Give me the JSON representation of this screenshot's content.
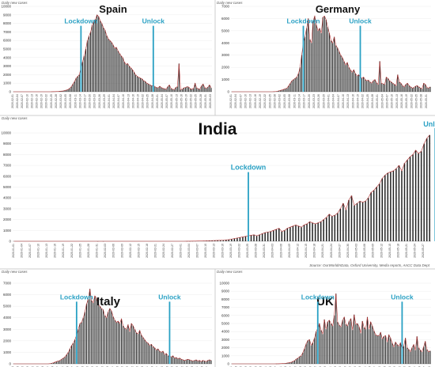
{
  "source_note": "Source: OurWorldInData, Oxford University, Media reports, AnCC Data Dept",
  "chart_data": [
    {
      "type": "bar",
      "title": "Spain",
      "ylabel": "Daily new cases",
      "ylim": [
        0,
        10000
      ],
      "y_ticks": [
        0,
        1000,
        2000,
        3000,
        4000,
        5000,
        6000,
        7000,
        8000,
        9000,
        10000
      ],
      "x_start": "2020-02-01",
      "x_end": "2020-05-31",
      "values": [
        0,
        0,
        0,
        0,
        0,
        0,
        0,
        0,
        0,
        0,
        0,
        0,
        0,
        0,
        0,
        0,
        0,
        0,
        0,
        0,
        0,
        0,
        0,
        0,
        10,
        15,
        20,
        30,
        40,
        60,
        80,
        100,
        150,
        200,
        280,
        400,
        600,
        900,
        1200,
        1600,
        1800,
        2000,
        2800,
        3500,
        4200,
        5000,
        6000,
        6500,
        7000,
        7800,
        8200,
        8500,
        9000,
        8800,
        8300,
        8000,
        7500,
        7200,
        6600,
        6200,
        6000,
        5800,
        5500,
        5100,
        5200,
        4800,
        4500,
        4200,
        4000,
        3500,
        3200,
        3300,
        3000,
        2800,
        2600,
        2300,
        2000,
        1800,
        1700,
        1600,
        1500,
        1300,
        1200,
        1000,
        900,
        800,
        700,
        750,
        600,
        500,
        450,
        650,
        500,
        400,
        350,
        300,
        600,
        800,
        400,
        300,
        250,
        500,
        600,
        3300,
        250,
        300,
        450,
        500,
        600,
        550,
        350,
        300,
        400,
        1000,
        450,
        350,
        300,
        700,
        900,
        500,
        400,
        550,
        800,
        450
      ],
      "annotations": [
        {
          "label": "Lockdown",
          "date": "2020-03-14"
        },
        {
          "label": "Unlock",
          "date": "2020-04-28"
        }
      ]
    },
    {
      "type": "bar",
      "title": "Germany",
      "ylabel": "Daily new cases",
      "ylim": [
        0,
        7000
      ],
      "y_ticks": [
        0,
        1000,
        2000,
        3000,
        4000,
        5000,
        6000,
        7000
      ],
      "x_start": "2020-02-01",
      "x_end": "2020-05-31",
      "values": [
        0,
        0,
        0,
        0,
        0,
        0,
        0,
        0,
        0,
        0,
        0,
        0,
        0,
        0,
        0,
        0,
        0,
        0,
        0,
        0,
        0,
        0,
        0,
        0,
        0,
        0,
        10,
        20,
        40,
        80,
        120,
        150,
        200,
        250,
        300,
        500,
        700,
        900,
        1000,
        1100,
        1200,
        1500,
        2000,
        3000,
        4000,
        4500,
        5200,
        6000,
        4300,
        4000,
        5800,
        6200,
        5500,
        5000,
        5200,
        4800,
        6100,
        6200,
        5900,
        5300,
        4800,
        4200,
        4000,
        4500,
        3800,
        3600,
        3300,
        3000,
        2800,
        2500,
        2200,
        2400,
        2000,
        1800,
        1600,
        1800,
        1500,
        1300,
        1400,
        1200,
        1100,
        1200,
        1000,
        900,
        950,
        800,
        700,
        900,
        1000,
        750,
        600,
        2500,
        700,
        650,
        600,
        1200,
        1100,
        900,
        800,
        700,
        600,
        500,
        1400,
        800,
        700,
        500,
        400,
        600,
        700,
        500,
        400,
        300,
        350,
        450,
        500,
        400,
        300,
        250,
        700,
        600,
        350,
        300,
        400
      ],
      "annotations": [
        {
          "label": "Lockdown",
          "date": "2020-03-16"
        },
        {
          "label": "Unlock",
          "date": "2020-04-20"
        }
      ]
    },
    {
      "type": "bar",
      "title": "India",
      "ylabel": "Daily new cases",
      "ylim": [
        0,
        10000
      ],
      "y_ticks": [
        0,
        1000,
        2000,
        3000,
        4000,
        5000,
        6000,
        7000,
        8000,
        9000,
        10000
      ],
      "x_start": "2020-01-01",
      "x_end": "2020-06-07",
      "values": [
        0,
        0,
        0,
        0,
        0,
        0,
        0,
        0,
        0,
        0,
        0,
        0,
        0,
        0,
        0,
        0,
        0,
        0,
        0,
        0,
        0,
        0,
        0,
        0,
        0,
        0,
        0,
        0,
        0,
        0,
        1,
        0,
        1,
        0,
        0,
        0,
        0,
        0,
        0,
        0,
        0,
        0,
        0,
        0,
        0,
        0,
        0,
        0,
        0,
        0,
        0,
        0,
        0,
        0,
        0,
        0,
        0,
        0,
        0,
        0,
        0,
        0,
        5,
        5,
        10,
        15,
        20,
        25,
        30,
        40,
        50,
        60,
        70,
        80,
        90,
        100,
        120,
        150,
        200,
        250,
        300,
        350,
        400,
        450,
        500,
        550,
        600,
        500,
        600,
        700,
        800,
        850,
        900,
        1000,
        1100,
        1200,
        900,
        1000,
        1200,
        1300,
        1400,
        1500,
        1400,
        1300,
        1500,
        1600,
        1800,
        1700,
        1600,
        1700,
        1800,
        2000,
        2200,
        2500,
        2300,
        2400,
        2600,
        3000,
        3500,
        2900,
        3800,
        4200,
        3300,
        3500,
        3700,
        3600,
        3700,
        4000,
        4500,
        4700,
        5000,
        5300,
        5800,
        6100,
        6300,
        6400,
        6500,
        6700,
        7000,
        6500,
        7200,
        7500,
        7800,
        8000,
        8400,
        8100,
        8300,
        9000,
        9500,
        9800
      ],
      "annotations": [
        {
          "label": "Lockdown",
          "date": "2020-03-25"
        },
        {
          "label": "Unlock",
          "date": "2020-05-31"
        }
      ]
    },
    {
      "type": "bar",
      "title": "Italy",
      "ylabel": "Daily new cases",
      "ylim": [
        0,
        7000
      ],
      "y_ticks": [
        0,
        1000,
        2000,
        3000,
        4000,
        5000,
        6000,
        7000
      ],
      "x_start": "2020-01-31",
      "x_end": "2020-05-31",
      "values": [
        0,
        0,
        0,
        0,
        0,
        0,
        0,
        0,
        0,
        0,
        0,
        0,
        0,
        0,
        0,
        0,
        0,
        0,
        0,
        0,
        0,
        0,
        20,
        50,
        90,
        150,
        200,
        250,
        300,
        400,
        500,
        600,
        800,
        1000,
        1300,
        1600,
        1800,
        2100,
        2500,
        3000,
        3500,
        3600,
        4000,
        4500,
        5200,
        5600,
        6500,
        5500,
        5300,
        5900,
        5700,
        5200,
        5000,
        4800,
        4700,
        4200,
        4000,
        4500,
        4800,
        4600,
        4100,
        3800,
        3600,
        3700,
        3500,
        3900,
        3300,
        3100,
        3000,
        3400,
        2800,
        3500,
        3300,
        3000,
        2700,
        2600,
        2900,
        2500,
        2300,
        2100,
        1900,
        1800,
        1600,
        1700,
        1500,
        1400,
        1200,
        1300,
        1100,
        1000,
        1100,
        800,
        900,
        700,
        650,
        600,
        700,
        500,
        550,
        450,
        500,
        400,
        350,
        300,
        350,
        400,
        350,
        300,
        250,
        300,
        350,
        250,
        300,
        200,
        300,
        250,
        200,
        300,
        350,
        300
      ],
      "annotations": [
        {
          "label": "Lockdown",
          "date": "2020-03-09"
        },
        {
          "label": "Unlock",
          "date": "2020-05-04"
        }
      ]
    },
    {
      "type": "bar",
      "title": "UK",
      "ylabel": "Daily new cases",
      "ylim": [
        0,
        10000
      ],
      "y_ticks": [
        0,
        1000,
        2000,
        3000,
        4000,
        5000,
        6000,
        7000,
        8000,
        9000,
        10000
      ],
      "x_start": "2020-01-31",
      "x_end": "2020-05-31",
      "values": [
        0,
        0,
        0,
        0,
        0,
        0,
        0,
        0,
        0,
        0,
        0,
        0,
        0,
        0,
        0,
        0,
        0,
        0,
        0,
        0,
        0,
        0,
        0,
        0,
        0,
        0,
        0,
        5,
        10,
        20,
        30,
        40,
        50,
        80,
        120,
        150,
        200,
        300,
        400,
        600,
        700,
        900,
        1000,
        1400,
        1900,
        2500,
        2900,
        3000,
        2300,
        2600,
        3200,
        4000,
        4400,
        5000,
        4200,
        3700,
        5500,
        4300,
        5200,
        5400,
        5000,
        4700,
        6000,
        8700,
        5200,
        4800,
        4600,
        5400,
        5800,
        4900,
        4700,
        5300,
        5600,
        4200,
        6100,
        4900,
        5000,
        4600,
        3800,
        5300,
        4500,
        4300,
        5800,
        4300,
        5200,
        4700,
        4100,
        3600,
        3500,
        3500,
        3900,
        3100,
        3400,
        3500,
        2700,
        3600,
        3200,
        2600,
        2100,
        2700,
        2400,
        2200,
        2600,
        1800,
        2200,
        3200,
        2000,
        1800,
        1500,
        2000,
        2400,
        1700,
        3400,
        2000,
        1700,
        1500,
        2100,
        2800,
        1800,
        1500,
        1600
      ],
      "annotations": [
        {
          "label": "Lockdown",
          "date": "2020-03-23"
        },
        {
          "label": "Unlock",
          "date": "2020-05-13"
        }
      ]
    }
  ]
}
